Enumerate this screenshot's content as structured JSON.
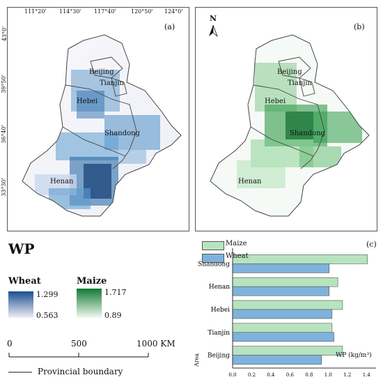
{
  "panel_a": {
    "label": "(a)",
    "top_ticks": [
      "111°20'",
      "114°30'",
      "117°40'",
      "120°50'",
      "124°0'"
    ],
    "left_ticks": [
      "43°0'",
      "39°50'",
      "36°40'",
      "33°30'"
    ],
    "provinces": [
      "Beijing",
      "Tianjin",
      "Hebei",
      "Shandong",
      "Henan"
    ]
  },
  "panel_b": {
    "label": "(b)",
    "north": "N",
    "provinces": [
      "Beijing",
      "Tianjin",
      "Hebei",
      "Shandong",
      "Henan"
    ]
  },
  "legend": {
    "title": "WP",
    "wheat": {
      "label": "Wheat",
      "max": "1.299",
      "min": "0.563",
      "colors": [
        "#1a4f8f",
        "#f2eef8"
      ]
    },
    "maize": {
      "label": "Maize",
      "max": "1.717",
      "min": "0.89",
      "colors": [
        "#137a33",
        "#f0faf0"
      ]
    },
    "scale_ticks": [
      "0",
      "500",
      "1000 KM"
    ],
    "boundary": "Provincial boundary"
  },
  "chart_data": {
    "type": "bar",
    "label": "(c)",
    "orientation": "horizontal",
    "categories": [
      "Shandong",
      "Henan",
      "Hebei",
      "Tianjin",
      "Beijing"
    ],
    "series": [
      {
        "name": "Maize",
        "color": "#b7e4bf",
        "values": [
          1.41,
          1.1,
          1.15,
          1.04,
          1.15
        ]
      },
      {
        "name": "Wheat",
        "color": "#7fb2dd",
        "values": [
          1.01,
          1.01,
          1.04,
          1.06,
          0.93
        ]
      }
    ],
    "xlabel": "WP (kg/m³)",
    "ylabel": "Area",
    "xlim": [
      0,
      1.5
    ],
    "xticks": [
      "0.0",
      "0.2",
      "0.4",
      "0.6",
      "0.8",
      "1.0",
      "1.2",
      "1.4"
    ],
    "legend_position": "top-left"
  }
}
